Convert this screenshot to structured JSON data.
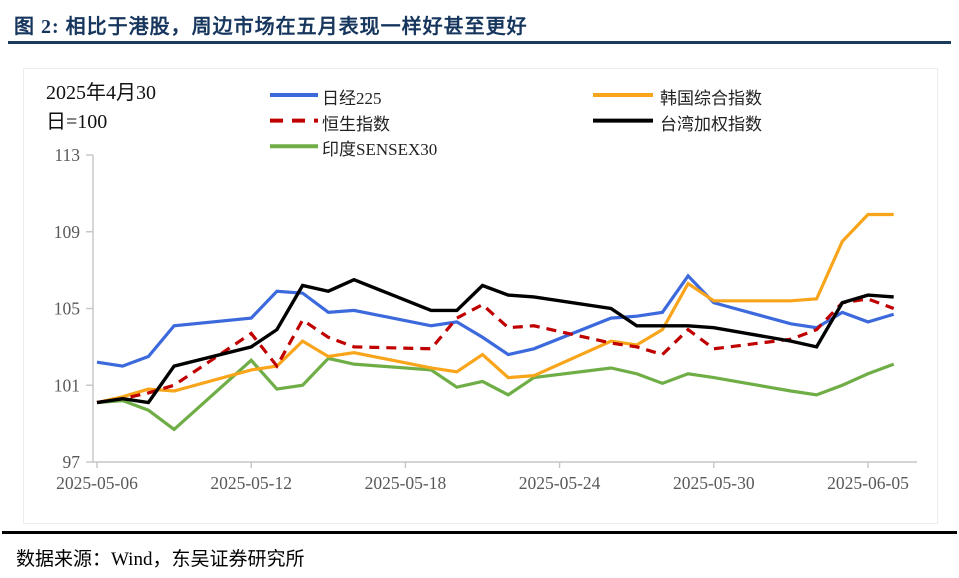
{
  "title": "图 2:  相比于港股，周边市场在五月表现一样好甚至更好",
  "annotation": {
    "line1": "2025年4月30",
    "line2": "日=100"
  },
  "footer": {
    "text": "数据来源：Wind，东吴证券研究所"
  },
  "colors": {
    "title_navy": "#17365D",
    "axis_line": "#C5C5C5",
    "axis_text": "#595959",
    "nikkei_blue": "#3C69DC",
    "hsi_red": "#C00000",
    "sensex_green": "#6FAE46",
    "kospi_orange": "#F9A51B",
    "taiex_black": "#000000"
  },
  "chart_data": {
    "type": "line",
    "title": "",
    "xlabel": "",
    "ylabel": "",
    "base_note": "2025年4月30日=100",
    "x_dates": [
      "2025-05-06",
      "2025-05-07",
      "2025-05-08",
      "2025-05-09",
      "2025-05-12",
      "2025-05-13",
      "2025-05-14",
      "2025-05-15",
      "2025-05-16",
      "2025-05-19",
      "2025-05-20",
      "2025-05-21",
      "2025-05-22",
      "2025-05-23",
      "2025-05-26",
      "2025-05-27",
      "2025-05-28",
      "2025-05-29",
      "2025-05-30",
      "2025-06-02",
      "2025-06-03",
      "2025-06-04",
      "2025-06-05",
      "2025-06-06"
    ],
    "x_day_offsets": [
      0,
      1,
      2,
      3,
      6,
      7,
      8,
      9,
      10,
      13,
      14,
      15,
      16,
      17,
      20,
      21,
      22,
      23,
      24,
      27,
      28,
      29,
      30,
      31
    ],
    "x_tick_labels": [
      "2025-05-06",
      "2025-05-12",
      "2025-05-18",
      "2025-05-24",
      "2025-05-30",
      "2025-06-05"
    ],
    "x_tick_offsets": [
      0,
      6,
      12,
      18,
      24,
      30
    ],
    "y_ticks": [
      97,
      101,
      105,
      109,
      113
    ],
    "ylim": [
      97,
      113
    ],
    "grid": false,
    "legend_position": "top",
    "series": [
      {
        "key": "nikkei225",
        "name": "日经225",
        "color": "#3C69DC",
        "dash": null,
        "values": [
          102.2,
          102.0,
          102.5,
          104.1,
          104.5,
          105.9,
          105.8,
          104.8,
          104.9,
          104.1,
          104.3,
          103.5,
          102.6,
          102.9,
          104.5,
          104.6,
          104.8,
          106.7,
          105.3,
          104.2,
          104.0,
          104.8,
          104.3,
          104.7
        ]
      },
      {
        "key": "hang-seng",
        "name": "恒生指数",
        "color": "#C00000",
        "dash": "10 7",
        "values": [
          100.1,
          100.3,
          100.6,
          101.0,
          103.7,
          102.0,
          104.4,
          103.5,
          103.0,
          102.9,
          104.5,
          105.2,
          104.0,
          104.1,
          103.2,
          103.0,
          102.6,
          103.9,
          102.9,
          103.4,
          103.9,
          105.3,
          105.5,
          105.0
        ]
      },
      {
        "key": "sensex30",
        "name": "印度SENSEX30",
        "color": "#6FAE46",
        "dash": null,
        "values": [
          100.1,
          100.2,
          99.7,
          98.7,
          102.3,
          100.8,
          101.0,
          102.4,
          102.1,
          101.8,
          100.9,
          101.2,
          100.5,
          101.4,
          101.9,
          101.6,
          101.1,
          101.6,
          101.4,
          100.7,
          100.5,
          101.0,
          101.6,
          102.1
        ]
      },
      {
        "key": "kospi",
        "name": "韩国综合指数",
        "color": "#F9A51B",
        "dash": null,
        "values": [
          100.1,
          100.4,
          100.8,
          100.7,
          101.8,
          102.0,
          103.3,
          102.5,
          102.7,
          101.9,
          101.7,
          102.6,
          101.4,
          101.5,
          103.3,
          103.1,
          103.9,
          106.3,
          105.4,
          105.4,
          105.5,
          108.5,
          109.9,
          109.9
        ]
      },
      {
        "key": "taiex",
        "name": "台湾加权指数",
        "color": "#000000",
        "dash": null,
        "values": [
          100.1,
          100.3,
          100.1,
          102.0,
          103.0,
          103.9,
          106.2,
          105.9,
          106.5,
          104.9,
          104.9,
          106.2,
          105.7,
          105.6,
          105.0,
          104.1,
          104.1,
          104.1,
          104.0,
          103.3,
          103.0,
          105.3,
          105.7,
          105.6
        ]
      }
    ],
    "legend": {
      "col1_series": [
        0,
        1,
        2
      ],
      "col2_series": [
        3,
        4
      ]
    }
  }
}
